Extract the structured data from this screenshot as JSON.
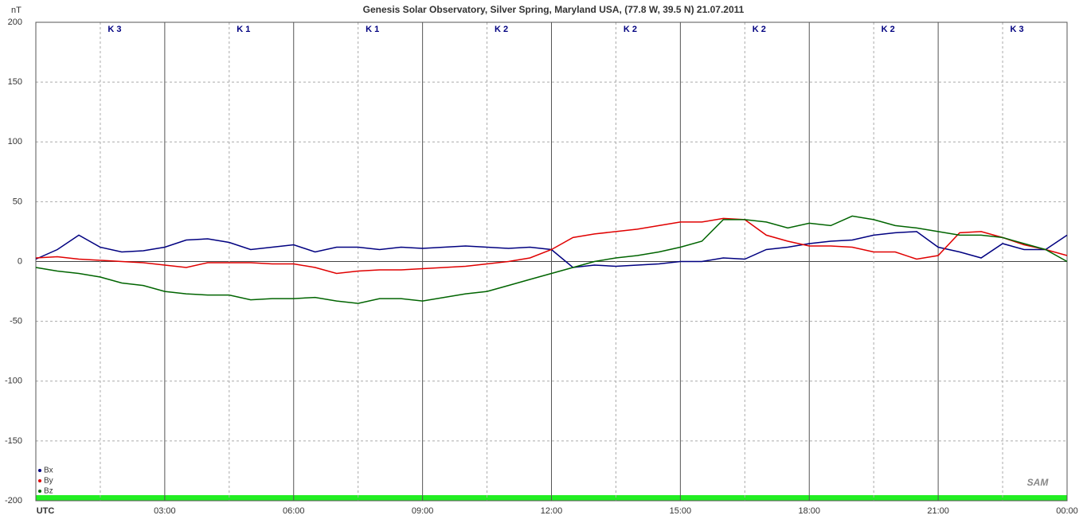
{
  "chart_data": {
    "type": "line",
    "title": "Genesis Solar Observatory, Silver Spring, Maryland USA, (77.8 W, 39.5 N)  21.07.2011",
    "ylabel": "nT",
    "logo": "SAM",
    "k_labels": [
      "K 3",
      "K 1",
      "K 1",
      "K 2",
      "K 2",
      "K 2",
      "K 2",
      "K 3"
    ],
    "xlim": [
      0,
      24
    ],
    "xticks": [
      {
        "value": 0,
        "label": "UTC"
      },
      {
        "value": 3,
        "label": "03:00"
      },
      {
        "value": 6,
        "label": "06:00"
      },
      {
        "value": 9,
        "label": "09:00"
      },
      {
        "value": 12,
        "label": "12:00"
      },
      {
        "value": 15,
        "label": "15:00"
      },
      {
        "value": 18,
        "label": "18:00"
      },
      {
        "value": 21,
        "label": "21:00"
      },
      {
        "value": 24,
        "label": "00:00"
      }
    ],
    "ylim": [
      -200,
      200
    ],
    "yticks": [
      -200,
      -150,
      -100,
      -50,
      0,
      50,
      100,
      150,
      200
    ],
    "grid": true,
    "legend": "bottom-left",
    "x": [
      0,
      0.5,
      1,
      1.5,
      2,
      2.5,
      3,
      3.5,
      4,
      4.5,
      5,
      5.5,
      6,
      6.5,
      7,
      7.5,
      8,
      8.5,
      9,
      9.5,
      10,
      10.5,
      11,
      11.5,
      12,
      12.5,
      13,
      13.5,
      14,
      14.5,
      15,
      15.5,
      16,
      16.5,
      17,
      17.5,
      18,
      18.5,
      19,
      19.5,
      20,
      20.5,
      21,
      21.5,
      22,
      22.5,
      23,
      23.5,
      24
    ],
    "series": [
      {
        "name": "Bx",
        "color": "#000080",
        "values": [
          2,
          10,
          22,
          12,
          8,
          9,
          12,
          18,
          19,
          16,
          10,
          12,
          14,
          8,
          12,
          12,
          10,
          12,
          11,
          12,
          13,
          12,
          11,
          12,
          10,
          -5,
          -3,
          -4,
          -3,
          -2,
          0,
          0,
          3,
          2,
          10,
          12,
          15,
          17,
          18,
          22,
          24,
          25,
          12,
          8,
          3,
          15,
          10,
          10,
          22
        ]
      },
      {
        "name": "By",
        "color": "#e00000",
        "values": [
          3,
          4,
          2,
          1,
          0,
          -1,
          -3,
          -5,
          -1,
          -1,
          -1,
          -2,
          -2,
          -5,
          -10,
          -8,
          -7,
          -7,
          -6,
          -5,
          -4,
          -2,
          0,
          3,
          10,
          20,
          23,
          25,
          27,
          30,
          33,
          33,
          36,
          35,
          22,
          17,
          13,
          13,
          12,
          8,
          8,
          2,
          5,
          24,
          25,
          20,
          14,
          10,
          5
        ]
      },
      {
        "name": "Bz",
        "color": "#006400",
        "values": [
          -5,
          -8,
          -10,
          -13,
          -18,
          -20,
          -25,
          -27,
          -28,
          -28,
          -32,
          -31,
          -31,
          -30,
          -33,
          -35,
          -31,
          -31,
          -33,
          -30,
          -27,
          -25,
          -20,
          -15,
          -10,
          -5,
          0,
          3,
          5,
          8,
          12,
          17,
          35,
          35,
          33,
          28,
          32,
          30,
          38,
          35,
          30,
          28,
          25,
          22,
          22,
          20,
          15,
          10,
          0
        ]
      }
    ]
  }
}
